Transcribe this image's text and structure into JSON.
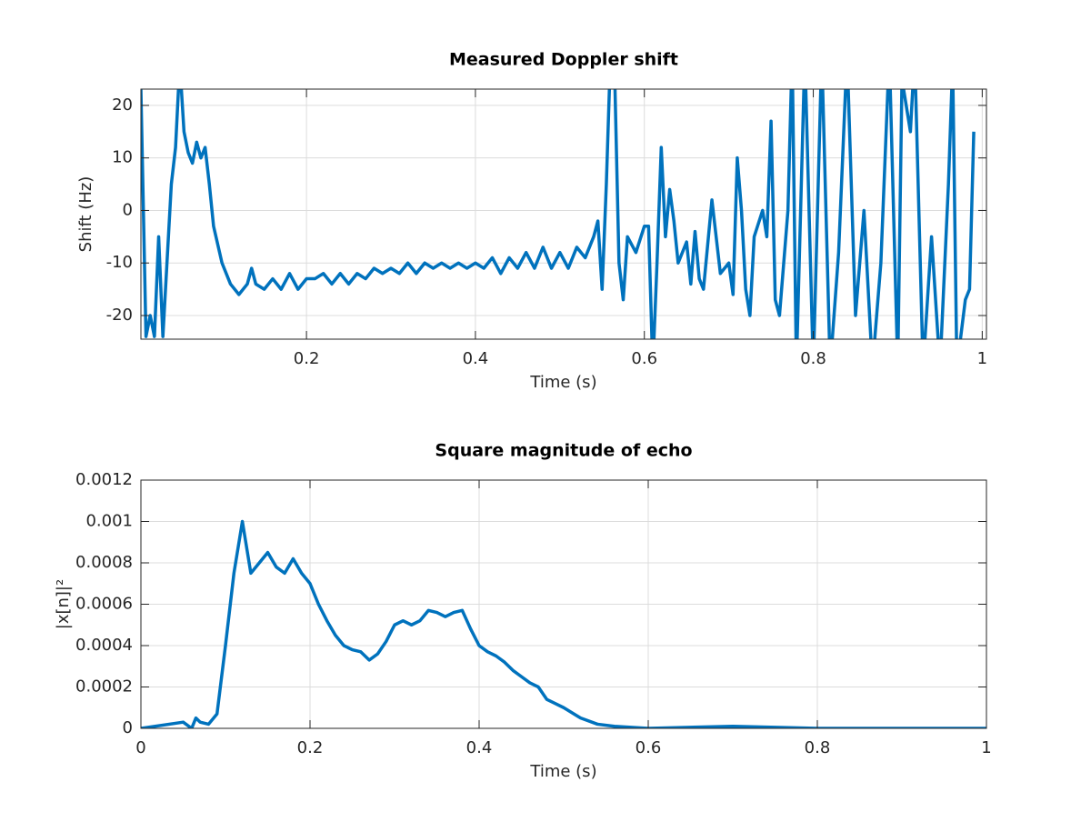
{
  "chart_data": [
    {
      "type": "line",
      "title": "Measured Doppler shift",
      "xlabel": "Time (s)",
      "ylabel": "Shift (Hz)",
      "xlim": [
        0.004,
        1.005
      ],
      "ylim": [
        -24.5,
        23.1
      ],
      "xticks": [
        0.2,
        0.4,
        0.6,
        0.8,
        1
      ],
      "yticks": [
        -20,
        -10,
        0,
        10,
        20
      ],
      "grid": true,
      "x": [
        0.004,
        0.01,
        0.015,
        0.02,
        0.025,
        0.03,
        0.04,
        0.045,
        0.05,
        0.055,
        0.06,
        0.065,
        0.07,
        0.075,
        0.08,
        0.085,
        0.09,
        0.1,
        0.11,
        0.12,
        0.13,
        0.135,
        0.14,
        0.15,
        0.16,
        0.17,
        0.18,
        0.19,
        0.2,
        0.21,
        0.22,
        0.23,
        0.24,
        0.25,
        0.26,
        0.27,
        0.28,
        0.29,
        0.3,
        0.31,
        0.32,
        0.33,
        0.34,
        0.35,
        0.36,
        0.37,
        0.38,
        0.39,
        0.4,
        0.41,
        0.42,
        0.43,
        0.44,
        0.45,
        0.46,
        0.47,
        0.48,
        0.49,
        0.5,
        0.51,
        0.52,
        0.53,
        0.54,
        0.545,
        0.55,
        0.555,
        0.56,
        0.565,
        0.57,
        0.575,
        0.58,
        0.59,
        0.6,
        0.605,
        0.61,
        0.615,
        0.62,
        0.625,
        0.63,
        0.635,
        0.64,
        0.65,
        0.655,
        0.66,
        0.665,
        0.67,
        0.68,
        0.69,
        0.7,
        0.705,
        0.71,
        0.715,
        0.72,
        0.725,
        0.73,
        0.74,
        0.745,
        0.75,
        0.755,
        0.76,
        0.77,
        0.775,
        0.78,
        0.79,
        0.8,
        0.81,
        0.82,
        0.83,
        0.84,
        0.85,
        0.86,
        0.87,
        0.88,
        0.89,
        0.9,
        0.905,
        0.91,
        0.915,
        0.92,
        0.93,
        0.94,
        0.95,
        0.96,
        0.965,
        0.97,
        0.98,
        0.985,
        0.99
      ],
      "series": [
        {
          "name": "Shift",
          "color": "#0072bd",
          "values": [
            23,
            -24,
            -20,
            -24,
            -5,
            -24,
            5,
            12,
            28,
            15,
            11,
            9,
            13,
            10,
            12,
            5,
            -3,
            -10,
            -14,
            -16,
            -14,
            -11,
            -14,
            -15,
            -13,
            -15,
            -12,
            -15,
            -13,
            -13,
            -12,
            -14,
            -12,
            -14,
            -12,
            -13,
            -11,
            -12,
            -11,
            -12,
            -10,
            -12,
            -10,
            -11,
            -10,
            -11,
            -10,
            -11,
            -10,
            -11,
            -9,
            -12,
            -9,
            -11,
            -8,
            -11,
            -7,
            -11,
            -8,
            -11,
            -7,
            -9,
            -5,
            -2,
            -15,
            5,
            30,
            25,
            -10,
            -17,
            -5,
            -8,
            -3,
            -3,
            -30,
            -10,
            12,
            -5,
            4,
            -2,
            -10,
            -6,
            -14,
            -4,
            -13,
            -15,
            2,
            -12,
            -10,
            -16,
            10,
            0,
            -15,
            -20,
            -5,
            0,
            -5,
            17,
            -17,
            -20,
            0,
            30,
            -30,
            30,
            -30,
            30,
            -30,
            -8,
            30,
            -20,
            0,
            -30,
            -10,
            30,
            -30,
            25,
            20,
            15,
            30,
            -30,
            -5,
            -30,
            5,
            28,
            -30,
            -17,
            -15,
            15
          ]
        }
      ]
    },
    {
      "type": "line",
      "title": "Square magnitude of echo",
      "xlabel": "Time (s)",
      "ylabel": "|x[n]|²",
      "xlim": [
        0,
        1
      ],
      "ylim": [
        0,
        0.0012
      ],
      "xticks": [
        0,
        0.2,
        0.4,
        0.6,
        0.8,
        1
      ],
      "yticks": [
        0,
        0.0002,
        0.0004,
        0.0006,
        0.0008,
        0.001,
        0.0012
      ],
      "grid": true,
      "x": [
        0,
        0.05,
        0.06,
        0.065,
        0.07,
        0.08,
        0.09,
        0.1,
        0.11,
        0.12,
        0.13,
        0.14,
        0.15,
        0.16,
        0.17,
        0.18,
        0.19,
        0.2,
        0.21,
        0.22,
        0.23,
        0.24,
        0.25,
        0.26,
        0.27,
        0.28,
        0.29,
        0.3,
        0.31,
        0.32,
        0.33,
        0.34,
        0.35,
        0.36,
        0.37,
        0.38,
        0.39,
        0.4,
        0.41,
        0.42,
        0.43,
        0.44,
        0.45,
        0.46,
        0.47,
        0.48,
        0.49,
        0.5,
        0.52,
        0.54,
        0.56,
        0.6,
        0.7,
        0.8,
        1
      ],
      "series": [
        {
          "name": "Echo",
          "color": "#0072bd",
          "values": [
            0,
            3e-05,
            0,
            5e-05,
            3e-05,
            2e-05,
            7e-05,
            0.0004,
            0.00075,
            0.001,
            0.00075,
            0.0008,
            0.00085,
            0.00078,
            0.00075,
            0.00082,
            0.00075,
            0.0007,
            0.0006,
            0.00052,
            0.00045,
            0.0004,
            0.00038,
            0.00037,
            0.00033,
            0.00036,
            0.00042,
            0.0005,
            0.00052,
            0.0005,
            0.00052,
            0.00057,
            0.00056,
            0.00054,
            0.00056,
            0.00057,
            0.00048,
            0.0004,
            0.00037,
            0.00035,
            0.00032,
            0.00028,
            0.00025,
            0.00022,
            0.0002,
            0.00014,
            0.00012,
            0.0001,
            5e-05,
            2e-05,
            1e-05,
            0,
            1e-05,
            0,
            0
          ]
        }
      ]
    }
  ]
}
